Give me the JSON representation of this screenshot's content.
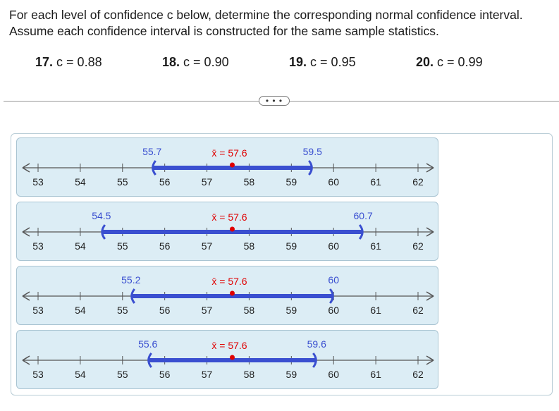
{
  "instructions": "For each level of confidence c below, determine the corresponding normal confidence interval. Assume each confidence interval is constructed for the same sample statistics.",
  "problems": [
    {
      "number": "17.",
      "text": "c = 0.88"
    },
    {
      "number": "18.",
      "text": "c = 0.90"
    },
    {
      "number": "19.",
      "text": "c = 0.95"
    },
    {
      "number": "20.",
      "text": "c = 0.99"
    }
  ],
  "more_button": "• • •",
  "colors": {
    "interval": "#3a4fd0",
    "mean": "#e00000",
    "label": "#3a4fd0",
    "axis": "#555555",
    "panel_bg": "#dcedf5"
  },
  "axis": {
    "min": 53,
    "max": 62,
    "ticks": [
      "53",
      "54",
      "55",
      "56",
      "57",
      "58",
      "59",
      "60",
      "61",
      "62"
    ]
  },
  "options": [
    {
      "lower": 55.7,
      "upper": 59.5,
      "lower_label": "55.7",
      "upper_label": "59.5",
      "mean": 57.6,
      "mean_label": "x̄ = 57.6"
    },
    {
      "lower": 54.5,
      "upper": 60.7,
      "lower_label": "54.5",
      "upper_label": "60.7",
      "mean": 57.6,
      "mean_label": "x̄ = 57.6"
    },
    {
      "lower": 55.2,
      "upper": 60,
      "lower_label": "55.2",
      "upper_label": "60",
      "mean": 57.6,
      "mean_label": "x̄ = 57.6"
    },
    {
      "lower": 55.6,
      "upper": 59.6,
      "lower_label": "55.6",
      "upper_label": "59.6",
      "mean": 57.6,
      "mean_label": "x̄ = 57.6"
    }
  ]
}
